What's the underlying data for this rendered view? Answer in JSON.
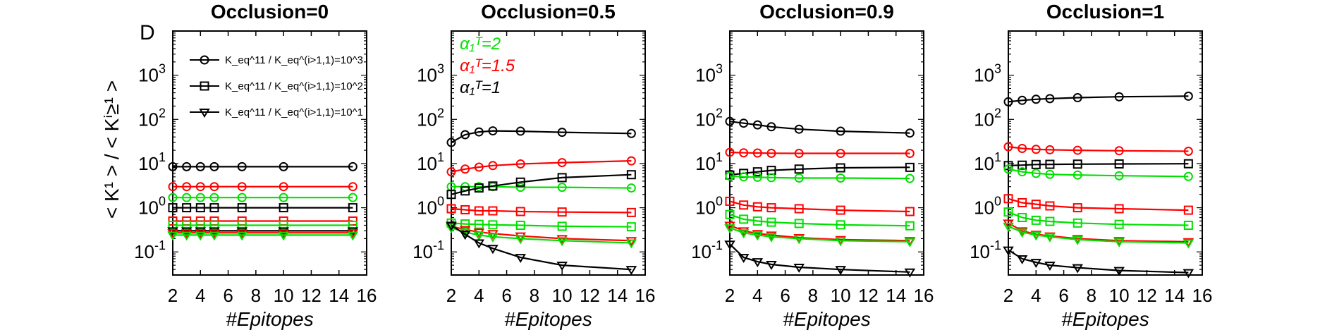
{
  "panel_label": "D",
  "y_axis_label": "< K¹ > / < Kⁱ≥¹ >",
  "legend_markers": [
    {
      "marker": "circle",
      "text": "K_eq^11 / K_eq^(i>1,1)=10^3"
    },
    {
      "marker": "square",
      "text": "K_eq^11 / K_eq^(i>1,1)=10^2"
    },
    {
      "marker": "triangle",
      "text": "K_eq^11 / K_eq^(i>1,1)=10^1"
    }
  ],
  "legend_colors": [
    {
      "label": "α₁ᵀ=2",
      "color": "#00e000"
    },
    {
      "label": "α₁ᵀ=1.5",
      "color": "#ff0000"
    },
    {
      "label": "α₁ᵀ=1",
      "color": "#000000"
    }
  ],
  "chart_data": [
    {
      "type": "line",
      "title": "Occlusion=0",
      "xlabel": "#Epitopes",
      "yscale": "log",
      "xlim": [
        2,
        16
      ],
      "ylim": [
        0.03,
        10000
      ],
      "xticks": [
        "2",
        "4",
        "6",
        "8",
        "10",
        "12",
        "14",
        "16"
      ],
      "yticks": [
        0.1,
        1,
        10,
        100,
        1000
      ],
      "x": [
        2,
        3,
        4,
        5,
        7,
        10,
        15
      ],
      "series": [
        {
          "color": "#000000",
          "marker": "circle",
          "values": [
            8.5,
            8.5,
            8.5,
            8.5,
            8.5,
            8.5,
            8.5
          ]
        },
        {
          "color": "#ff0000",
          "marker": "circle",
          "values": [
            3.0,
            3.0,
            3.0,
            3.0,
            3.0,
            3.0,
            3.0
          ]
        },
        {
          "color": "#00e000",
          "marker": "circle",
          "values": [
            1.7,
            1.7,
            1.7,
            1.7,
            1.7,
            1.7,
            1.7
          ]
        },
        {
          "color": "#000000",
          "marker": "square",
          "values": [
            1.0,
            1.0,
            1.0,
            1.0,
            1.0,
            1.0,
            1.0
          ]
        },
        {
          "color": "#ff0000",
          "marker": "square",
          "values": [
            0.5,
            0.5,
            0.5,
            0.5,
            0.5,
            0.5,
            0.5
          ]
        },
        {
          "color": "#00e000",
          "marker": "square",
          "values": [
            0.4,
            0.4,
            0.4,
            0.4,
            0.4,
            0.4,
            0.4
          ]
        },
        {
          "color": "#000000",
          "marker": "triangle",
          "values": [
            0.3,
            0.3,
            0.3,
            0.3,
            0.3,
            0.3,
            0.3
          ]
        },
        {
          "color": "#ff0000",
          "marker": "triangle",
          "values": [
            0.27,
            0.27,
            0.27,
            0.27,
            0.27,
            0.27,
            0.27
          ]
        },
        {
          "color": "#00e000",
          "marker": "triangle",
          "values": [
            0.24,
            0.24,
            0.24,
            0.24,
            0.24,
            0.24,
            0.24
          ]
        }
      ]
    },
    {
      "type": "line",
      "title": "Occlusion=0.5",
      "xlabel": "#Epitopes",
      "yscale": "log",
      "xlim": [
        2,
        16
      ],
      "ylim": [
        0.03,
        10000
      ],
      "xticks": [
        "2",
        "4",
        "6",
        "8",
        "10",
        "12",
        "14",
        "16"
      ],
      "yticks": [
        0.1,
        1,
        10,
        100,
        1000
      ],
      "x": [
        2,
        3,
        4,
        5,
        7,
        10,
        15
      ],
      "series": [
        {
          "color": "#000000",
          "marker": "circle",
          "values": [
            30,
            45,
            52,
            55,
            54,
            51,
            48
          ]
        },
        {
          "color": "#ff0000",
          "marker": "circle",
          "values": [
            6.5,
            7.5,
            8.3,
            9.0,
            9.8,
            10.5,
            11.5
          ]
        },
        {
          "color": "#00e000",
          "marker": "circle",
          "values": [
            3.0,
            3.0,
            3.0,
            3.0,
            2.9,
            2.9,
            2.8
          ]
        },
        {
          "color": "#000000",
          "marker": "square",
          "values": [
            2.0,
            2.4,
            2.8,
            3.1,
            3.8,
            4.8,
            5.6
          ]
        },
        {
          "color": "#ff0000",
          "marker": "square",
          "values": [
            0.95,
            0.9,
            0.85,
            0.85,
            0.82,
            0.8,
            0.78
          ]
        },
        {
          "color": "#00e000",
          "marker": "square",
          "values": [
            0.45,
            0.43,
            0.42,
            0.41,
            0.4,
            0.38,
            0.37
          ]
        },
        {
          "color": "#ff0000",
          "marker": "triangle",
          "values": [
            0.38,
            0.32,
            0.28,
            0.26,
            0.23,
            0.2,
            0.18
          ]
        },
        {
          "color": "#00e000",
          "marker": "triangle",
          "values": [
            0.35,
            0.28,
            0.24,
            0.22,
            0.2,
            0.18,
            0.16
          ]
        },
        {
          "color": "#000000",
          "marker": "triangle",
          "values": [
            0.4,
            0.25,
            0.16,
            0.12,
            0.075,
            0.05,
            0.04
          ]
        }
      ]
    },
    {
      "type": "line",
      "title": "Occlusion=0.9",
      "xlabel": "#Epitopes",
      "yscale": "log",
      "xlim": [
        2,
        16
      ],
      "ylim": [
        0.03,
        10000
      ],
      "xticks": [
        "2",
        "4",
        "6",
        "8",
        "10",
        "12",
        "14",
        "16"
      ],
      "yticks": [
        0.1,
        1,
        10,
        100,
        1000
      ],
      "x": [
        2,
        3,
        4,
        5,
        7,
        10,
        15
      ],
      "series": [
        {
          "color": "#000000",
          "marker": "circle",
          "values": [
            90,
            82,
            75,
            68,
            60,
            54,
            49
          ]
        },
        {
          "color": "#ff0000",
          "marker": "circle",
          "values": [
            18,
            17.5,
            17.3,
            17.1,
            17,
            17,
            17
          ]
        },
        {
          "color": "#000000",
          "marker": "square",
          "values": [
            5.5,
            6.0,
            6.5,
            7.0,
            7.5,
            8.0,
            8.2
          ]
        },
        {
          "color": "#00e000",
          "marker": "circle",
          "values": [
            5.2,
            5.0,
            4.9,
            4.8,
            4.7,
            4.7,
            4.6
          ]
        },
        {
          "color": "#ff0000",
          "marker": "square",
          "values": [
            1.4,
            1.15,
            1.05,
            1.0,
            0.95,
            0.88,
            0.82
          ]
        },
        {
          "color": "#00e000",
          "marker": "square",
          "values": [
            0.7,
            0.55,
            0.5,
            0.47,
            0.44,
            0.41,
            0.39
          ]
        },
        {
          "color": "#ff0000",
          "marker": "triangle",
          "values": [
            0.4,
            0.3,
            0.26,
            0.24,
            0.21,
            0.19,
            0.18
          ]
        },
        {
          "color": "#00e000",
          "marker": "triangle",
          "values": [
            0.35,
            0.27,
            0.24,
            0.22,
            0.2,
            0.18,
            0.17
          ]
        },
        {
          "color": "#000000",
          "marker": "triangle",
          "values": [
            0.15,
            0.075,
            0.06,
            0.052,
            0.045,
            0.04,
            0.035
          ]
        }
      ]
    },
    {
      "type": "line",
      "title": "Occlusion=1",
      "xlabel": "#Epitopes",
      "yscale": "log",
      "xlim": [
        2,
        16
      ],
      "ylim": [
        0.03,
        10000
      ],
      "xticks": [
        "2",
        "4",
        "6",
        "8",
        "10",
        "12",
        "14",
        "16"
      ],
      "yticks": [
        0.1,
        1,
        10,
        100,
        1000
      ],
      "x": [
        2,
        3,
        4,
        5,
        7,
        10,
        15
      ],
      "series": [
        {
          "color": "#000000",
          "marker": "circle",
          "values": [
            250,
            270,
            285,
            295,
            310,
            325,
            335
          ]
        },
        {
          "color": "#ff0000",
          "marker": "circle",
          "values": [
            24,
            22,
            21,
            20.5,
            20,
            19.5,
            19
          ]
        },
        {
          "color": "#000000",
          "marker": "square",
          "values": [
            9.0,
            9.2,
            9.5,
            9.6,
            9.7,
            9.8,
            9.9
          ]
        },
        {
          "color": "#00e000",
          "marker": "circle",
          "values": [
            7.5,
            6.5,
            6.0,
            5.7,
            5.5,
            5.3,
            5.1
          ]
        },
        {
          "color": "#ff0000",
          "marker": "square",
          "values": [
            1.6,
            1.3,
            1.2,
            1.1,
            1.0,
            0.95,
            0.88
          ]
        },
        {
          "color": "#00e000",
          "marker": "square",
          "values": [
            0.8,
            0.6,
            0.52,
            0.49,
            0.45,
            0.42,
            0.4
          ]
        },
        {
          "color": "#ff0000",
          "marker": "triangle",
          "values": [
            0.45,
            0.3,
            0.25,
            0.23,
            0.2,
            0.18,
            0.17
          ]
        },
        {
          "color": "#00e000",
          "marker": "triangle",
          "values": [
            0.38,
            0.28,
            0.24,
            0.22,
            0.19,
            0.17,
            0.16
          ]
        },
        {
          "color": "#000000",
          "marker": "triangle",
          "values": [
            0.11,
            0.07,
            0.058,
            0.05,
            0.044,
            0.038,
            0.034
          ]
        }
      ]
    }
  ]
}
